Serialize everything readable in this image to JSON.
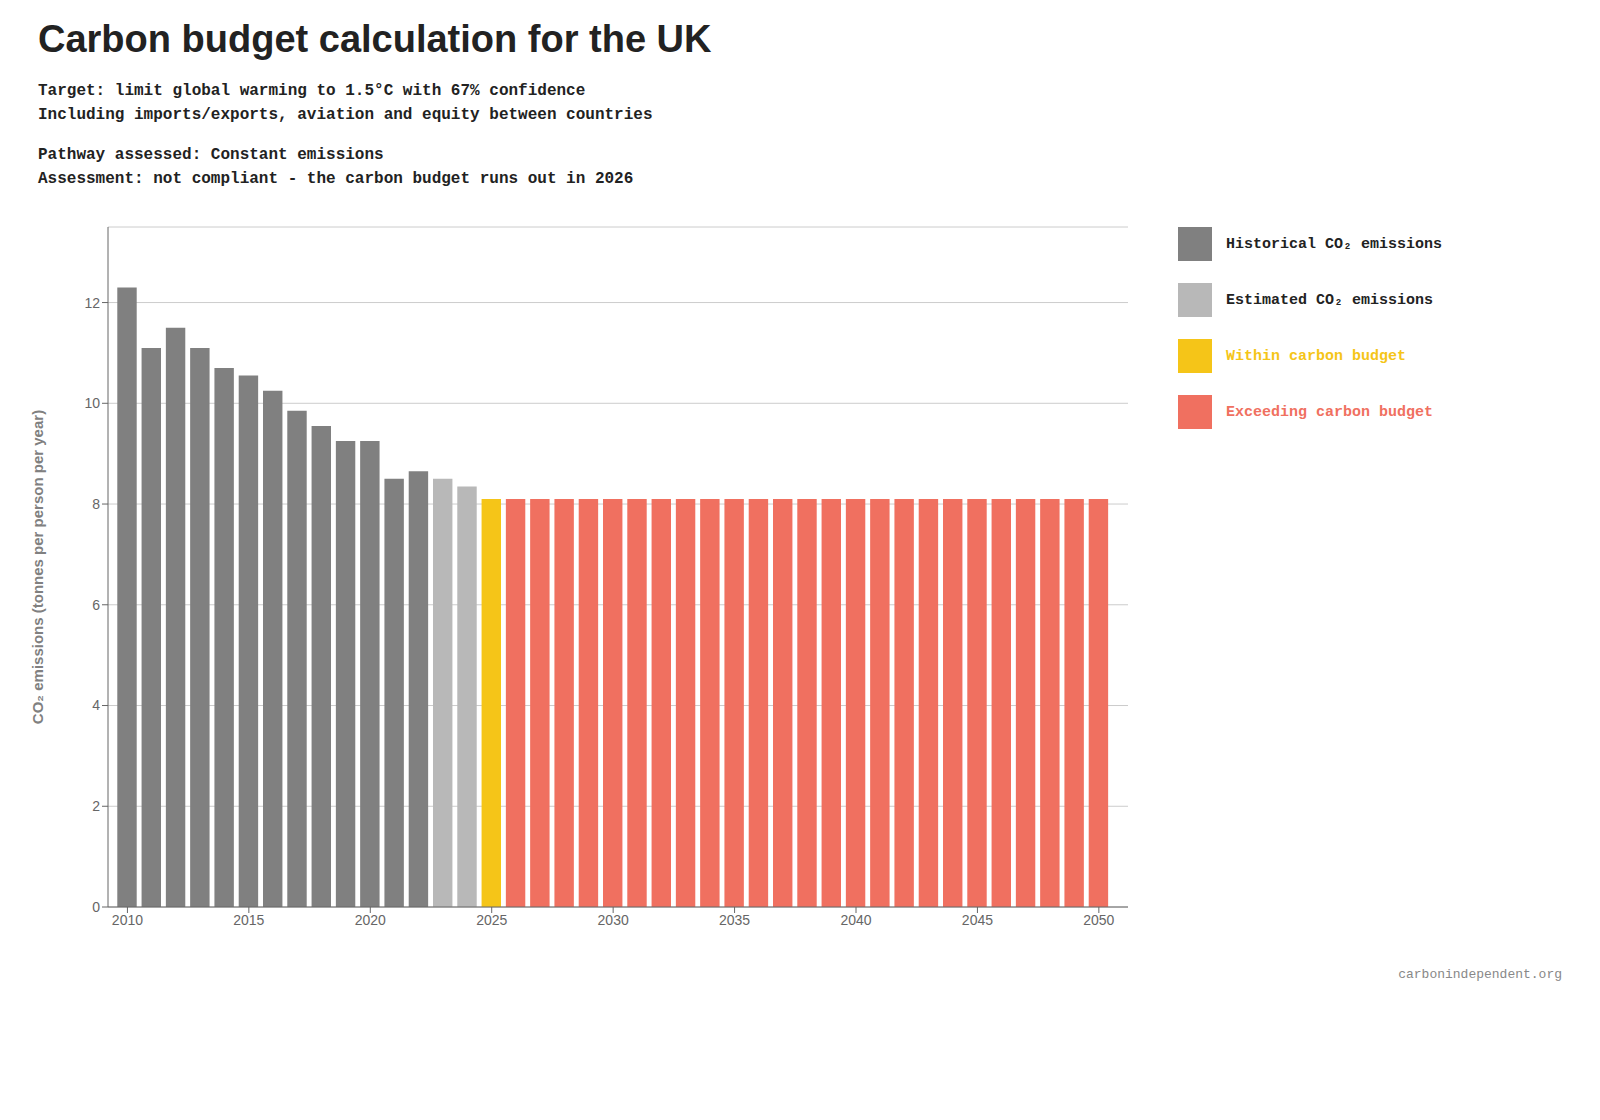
{
  "chart_data": {
    "type": "bar",
    "title": "Carbon budget calculation for the UK",
    "subtitle": [
      "Target: limit global warming to 1.5°C with 67% confidence",
      "Including imports/exports, aviation and equity between countries"
    ],
    "annotations": [
      "Pathway assessed:  Constant emissions",
      "Assessment: not compliant - the carbon budget runs out in 2026",
      "carbonindependent.org"
    ],
    "ylabel": "CO₂ emissions (tonnes per person per year)",
    "x": [
      2010,
      2011,
      2012,
      2013,
      2014,
      2015,
      2016,
      2017,
      2018,
      2019,
      2020,
      2021,
      2022,
      2023,
      2024,
      2025,
      2026,
      2027,
      2028,
      2029,
      2030,
      2031,
      2032,
      2033,
      2034,
      2035,
      2036,
      2037,
      2038,
      2039,
      2040,
      2041,
      2042,
      2043,
      2044,
      2045,
      2046,
      2047,
      2048,
      2049,
      2050
    ],
    "xlim": [
      2009.2,
      2051.2
    ],
    "xticks": [
      2010,
      2015,
      2020,
      2025,
      2030,
      2035,
      2040,
      2045,
      2050
    ],
    "ylim": [
      0,
      13.5
    ],
    "yticks": [
      0,
      2,
      4,
      6,
      8,
      10,
      12
    ],
    "grid": true,
    "legend": "upper right",
    "series": [
      {
        "name": "Historical CO₂ emissions",
        "color": "#808080",
        "values": [
          12.3,
          11.1,
          11.5,
          11.1,
          10.7,
          10.55,
          10.25,
          9.85,
          9.55,
          9.25,
          9.25,
          8.5,
          8.65,
          null,
          null,
          null,
          null,
          null,
          null,
          null,
          null,
          null,
          null,
          null,
          null,
          null,
          null,
          null,
          null,
          null,
          null,
          null,
          null,
          null,
          null,
          null,
          null,
          null,
          null,
          null,
          null
        ]
      },
      {
        "name": "Estimated CO₂ emissions",
        "color": "#b8b8b8",
        "values": [
          null,
          null,
          null,
          null,
          null,
          null,
          null,
          null,
          null,
          null,
          null,
          null,
          null,
          8.5,
          8.35,
          null,
          null,
          null,
          null,
          null,
          null,
          null,
          null,
          null,
          null,
          null,
          null,
          null,
          null,
          null,
          null,
          null,
          null,
          null,
          null,
          null,
          null,
          null,
          null,
          null,
          null
        ]
      },
      {
        "name": "Within carbon budget",
        "color": "#f5c518",
        "values": [
          null,
          null,
          null,
          null,
          null,
          null,
          null,
          null,
          null,
          null,
          null,
          null,
          null,
          null,
          null,
          8.1,
          null,
          null,
          null,
          null,
          null,
          null,
          null,
          null,
          null,
          null,
          null,
          null,
          null,
          null,
          null,
          null,
          null,
          null,
          null,
          null,
          null,
          null,
          null,
          null,
          null
        ]
      },
      {
        "name": "Exceeding carbon budget",
        "color": "#f07060",
        "values": [
          null,
          null,
          null,
          null,
          null,
          null,
          null,
          null,
          null,
          null,
          null,
          null,
          null,
          null,
          null,
          null,
          8.1,
          8.1,
          8.1,
          8.1,
          8.1,
          8.1,
          8.1,
          8.1,
          8.1,
          8.1,
          8.1,
          8.1,
          8.1,
          8.1,
          8.1,
          8.1,
          8.1,
          8.1,
          8.1,
          8.1,
          8.1,
          8.1,
          8.1,
          8.1,
          8.1
        ]
      }
    ]
  }
}
